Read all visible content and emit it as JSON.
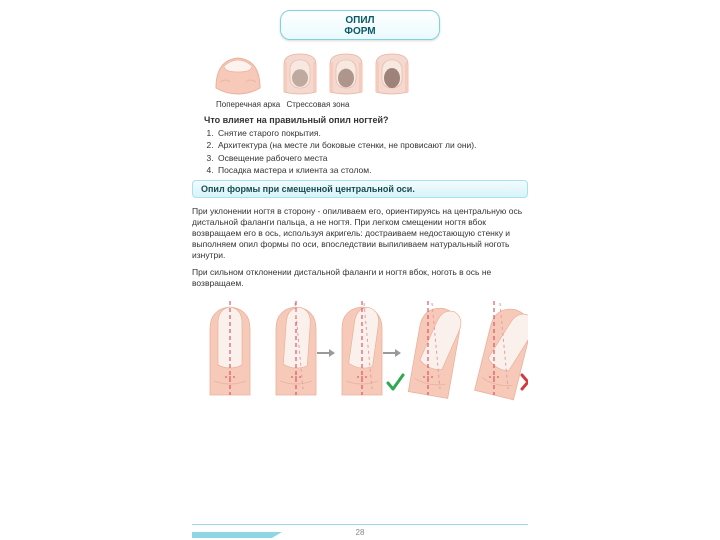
{
  "title": {
    "line1": "ОПИЛ",
    "line2": "ФОРМ"
  },
  "captions": {
    "arc": "Поперечная арка",
    "stress": "Стрессовая зона"
  },
  "question": "Что влияет на правильный опил ногтей?",
  "factors": [
    "Снятие старого покрытия.",
    "Архитектура (на месте ли боковые стенки, не провисают ли они).",
    "Освещение рабочего места",
    "Посадка мастера и клиента за столом."
  ],
  "subheader": "Опил формы при смещенной центральной оси.",
  "paragraph1": "При уклонении ногтя в сторону - опиливаем его, ориентируясь на центральную ось дистальной фаланги пальца, а не ногтя. При легком смещении ногтя вбок возвращаем его в ось, используя акригель: достраиваем недостающую стенку и выполняем опил формы по оси, впоследствии выпиливаем натуральный ноготь изнутри.",
  "paragraph2": "При сильном отклонении дистальной фаланги и ногтя вбок, ноготь в ось не возвращаем.",
  "pageNumber": "28",
  "colors": {
    "skin": "#f6c9b8",
    "skinShade": "#e9b29e",
    "nailBed": "#f3d9cf",
    "nailPlate": "#b38e82",
    "nailDark": "#6b4a3f",
    "axisRed": "#d94a5a",
    "axisRedLight": "#e99aa4",
    "arrowGray": "#9a9a9a",
    "ok": "#2fa84f",
    "bad": "#d23b3b",
    "pillBorder": "#7fd3e0"
  },
  "topNails": {
    "arc": {
      "w": 46,
      "h": 44
    },
    "stress": [
      {
        "shade": 0.25
      },
      {
        "shade": 0.45
      },
      {
        "shade": 0.65
      }
    ]
  },
  "bottomFingers": [
    {
      "tilt": 0,
      "nailTilt": 0,
      "axisOffset": 0,
      "mark": "none",
      "arrow": false
    },
    {
      "tilt": 0,
      "nailTilt": 4,
      "axisOffset": 3,
      "mark": "none",
      "arrow": true
    },
    {
      "tilt": 0,
      "nailTilt": 8,
      "axisOffset": 6,
      "mark": "ok",
      "arrow": true
    },
    {
      "tilt": 10,
      "nailTilt": 14,
      "axisOffset": 8,
      "mark": "none",
      "arrow": false
    },
    {
      "tilt": 14,
      "nailTilt": 18,
      "axisOffset": 10,
      "mark": "bad",
      "arrow": false
    }
  ]
}
